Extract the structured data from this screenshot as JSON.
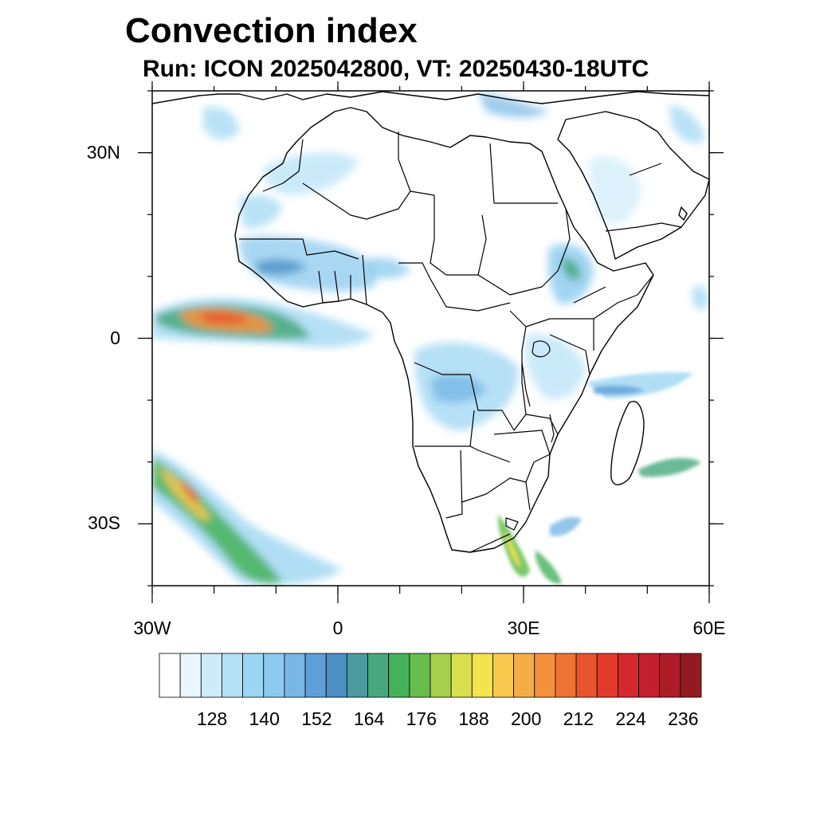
{
  "title": "Convection index",
  "subtitle": "Run: ICON 2025042800,  VT: 20250430-18UTC",
  "map": {
    "projection": "cylindrical-equidistant",
    "lon_range": [
      -30,
      60
    ],
    "lat_range": [
      -40,
      40
    ],
    "lat_ticks": [
      {
        "lat": 30,
        "label": "30N"
      },
      {
        "lat": 0,
        "label": "0"
      },
      {
        "lat": -30,
        "label": "30S"
      }
    ],
    "lon_ticks": [
      {
        "lon": -30,
        "label": "30W"
      },
      {
        "lon": 0,
        "label": "0"
      },
      {
        "lon": 30,
        "label": "30E"
      },
      {
        "lon": 60,
        "label": "60E"
      }
    ],
    "minor_tick_step_deg": 10,
    "field": "convection index",
    "features": "country borders and coastlines"
  },
  "colorbar": {
    "labels": [
      "128",
      "140",
      "152",
      "164",
      "176",
      "188",
      "200",
      "212",
      "224",
      "236"
    ],
    "colors": [
      "#ffffff",
      "#eaf6fd",
      "#cdebf9",
      "#b5e1f6",
      "#9dd6f3",
      "#8ccaef",
      "#78b7e6",
      "#5f9fd8",
      "#4b8fc4",
      "#4b9aa0",
      "#47a77e",
      "#45b25a",
      "#66bd4e",
      "#a6cf4d",
      "#d9de4e",
      "#f2e34f",
      "#f8c94e",
      "#f5ad45",
      "#f3903b",
      "#ee7333",
      "#e8542d",
      "#e23a2b",
      "#d6272d",
      "#c41f2d",
      "#ad1b27",
      "#941a22"
    ]
  },
  "colors": {
    "ocean_background": "#ffffff",
    "border_line": "#000000"
  }
}
